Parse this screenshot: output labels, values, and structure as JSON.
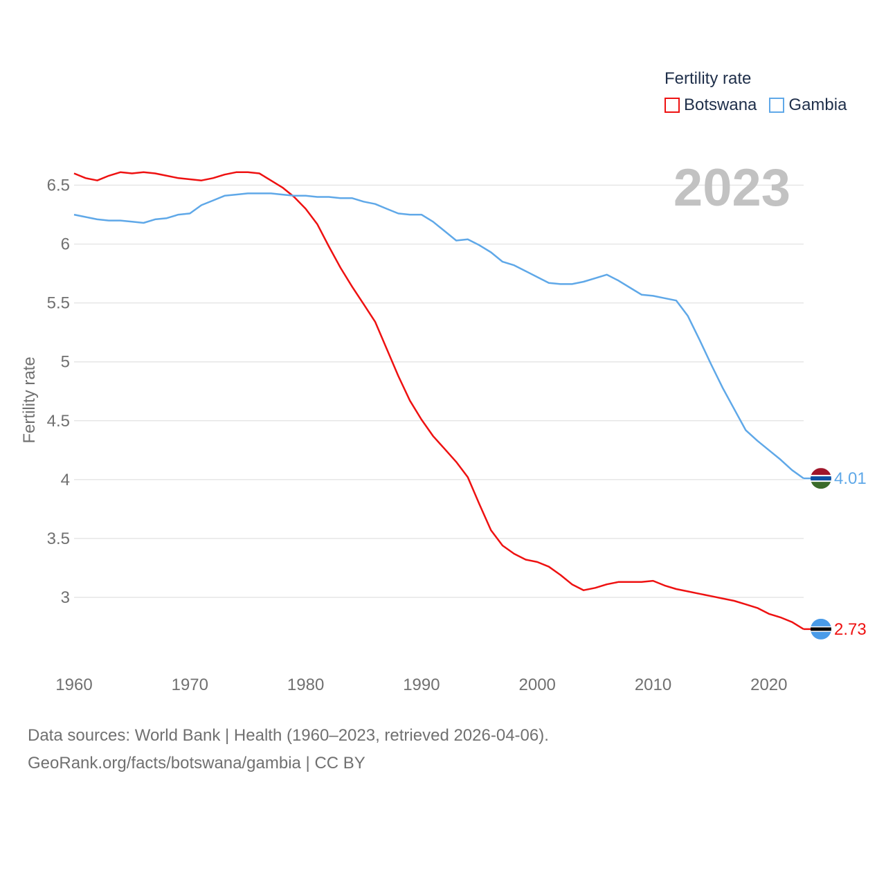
{
  "legend": {
    "title": "Fertility rate",
    "items": [
      {
        "name": "Botswana",
        "color": "#ee1111"
      },
      {
        "name": "Gambia",
        "color": "#5fa8e8"
      }
    ]
  },
  "year_label": "2023",
  "footer": {
    "line1": "Data sources: World Bank | Health (1960–2023, retrieved 2026-04-06).",
    "line2": "GeoRank.org/facts/botswana/gambia | CC BY"
  },
  "chart_data": {
    "type": "line",
    "title": "Fertility rate",
    "xlabel": "",
    "ylabel": "Fertility rate",
    "xlim": [
      1960,
      2023
    ],
    "ylim": [
      2.5,
      6.75
    ],
    "xticks": [
      1960,
      1970,
      1980,
      1990,
      2000,
      2010,
      2020
    ],
    "yticks": [
      3,
      3.5,
      4,
      4.5,
      5,
      5.5,
      6,
      6.5
    ],
    "ytick_labels": [
      "3",
      "3.5",
      "4",
      "4.5",
      "5",
      "5.5",
      "6",
      "6.5"
    ],
    "grid": true,
    "x": [
      1960,
      1961,
      1962,
      1963,
      1964,
      1965,
      1966,
      1967,
      1968,
      1969,
      1970,
      1971,
      1972,
      1973,
      1974,
      1975,
      1976,
      1977,
      1978,
      1979,
      1980,
      1981,
      1982,
      1983,
      1984,
      1985,
      1986,
      1987,
      1988,
      1989,
      1990,
      1991,
      1992,
      1993,
      1994,
      1995,
      1996,
      1997,
      1998,
      1999,
      2000,
      2001,
      2002,
      2003,
      2004,
      2005,
      2006,
      2007,
      2008,
      2009,
      2010,
      2011,
      2012,
      2013,
      2014,
      2015,
      2016,
      2017,
      2018,
      2019,
      2020,
      2021,
      2022,
      2023
    ],
    "series": [
      {
        "name": "Botswana",
        "color": "#ee1111",
        "end_label": "2.73",
        "values": [
          6.6,
          6.56,
          6.54,
          6.58,
          6.61,
          6.6,
          6.61,
          6.6,
          6.58,
          6.56,
          6.55,
          6.54,
          6.56,
          6.59,
          6.61,
          6.61,
          6.6,
          6.54,
          6.48,
          6.4,
          6.3,
          6.17,
          5.98,
          5.8,
          5.64,
          5.49,
          5.34,
          5.11,
          4.88,
          4.67,
          4.51,
          4.37,
          4.26,
          4.15,
          4.02,
          3.79,
          3.57,
          3.44,
          3.37,
          3.32,
          3.3,
          3.26,
          3.19,
          3.11,
          3.06,
          3.08,
          3.11,
          3.13,
          3.13,
          3.13,
          3.14,
          3.1,
          3.07,
          3.05,
          3.03,
          3.01,
          2.99,
          2.97,
          2.94,
          2.91,
          2.86,
          2.83,
          2.79,
          2.73
        ]
      },
      {
        "name": "Gambia",
        "color": "#5fa8e8",
        "end_label": "4.01",
        "values": [
          6.25,
          6.23,
          6.21,
          6.2,
          6.2,
          6.19,
          6.18,
          6.21,
          6.22,
          6.25,
          6.26,
          6.33,
          6.37,
          6.41,
          6.42,
          6.43,
          6.43,
          6.43,
          6.42,
          6.41,
          6.41,
          6.4,
          6.4,
          6.39,
          6.39,
          6.36,
          6.34,
          6.3,
          6.26,
          6.25,
          6.25,
          6.19,
          6.11,
          6.03,
          6.04,
          5.99,
          5.93,
          5.85,
          5.82,
          5.77,
          5.72,
          5.67,
          5.66,
          5.66,
          5.68,
          5.71,
          5.74,
          5.69,
          5.63,
          5.57,
          5.56,
          5.54,
          5.52,
          5.39,
          5.19,
          4.98,
          4.78,
          4.6,
          4.42,
          4.33,
          4.25,
          4.17,
          4.08,
          4.01
        ]
      }
    ]
  }
}
